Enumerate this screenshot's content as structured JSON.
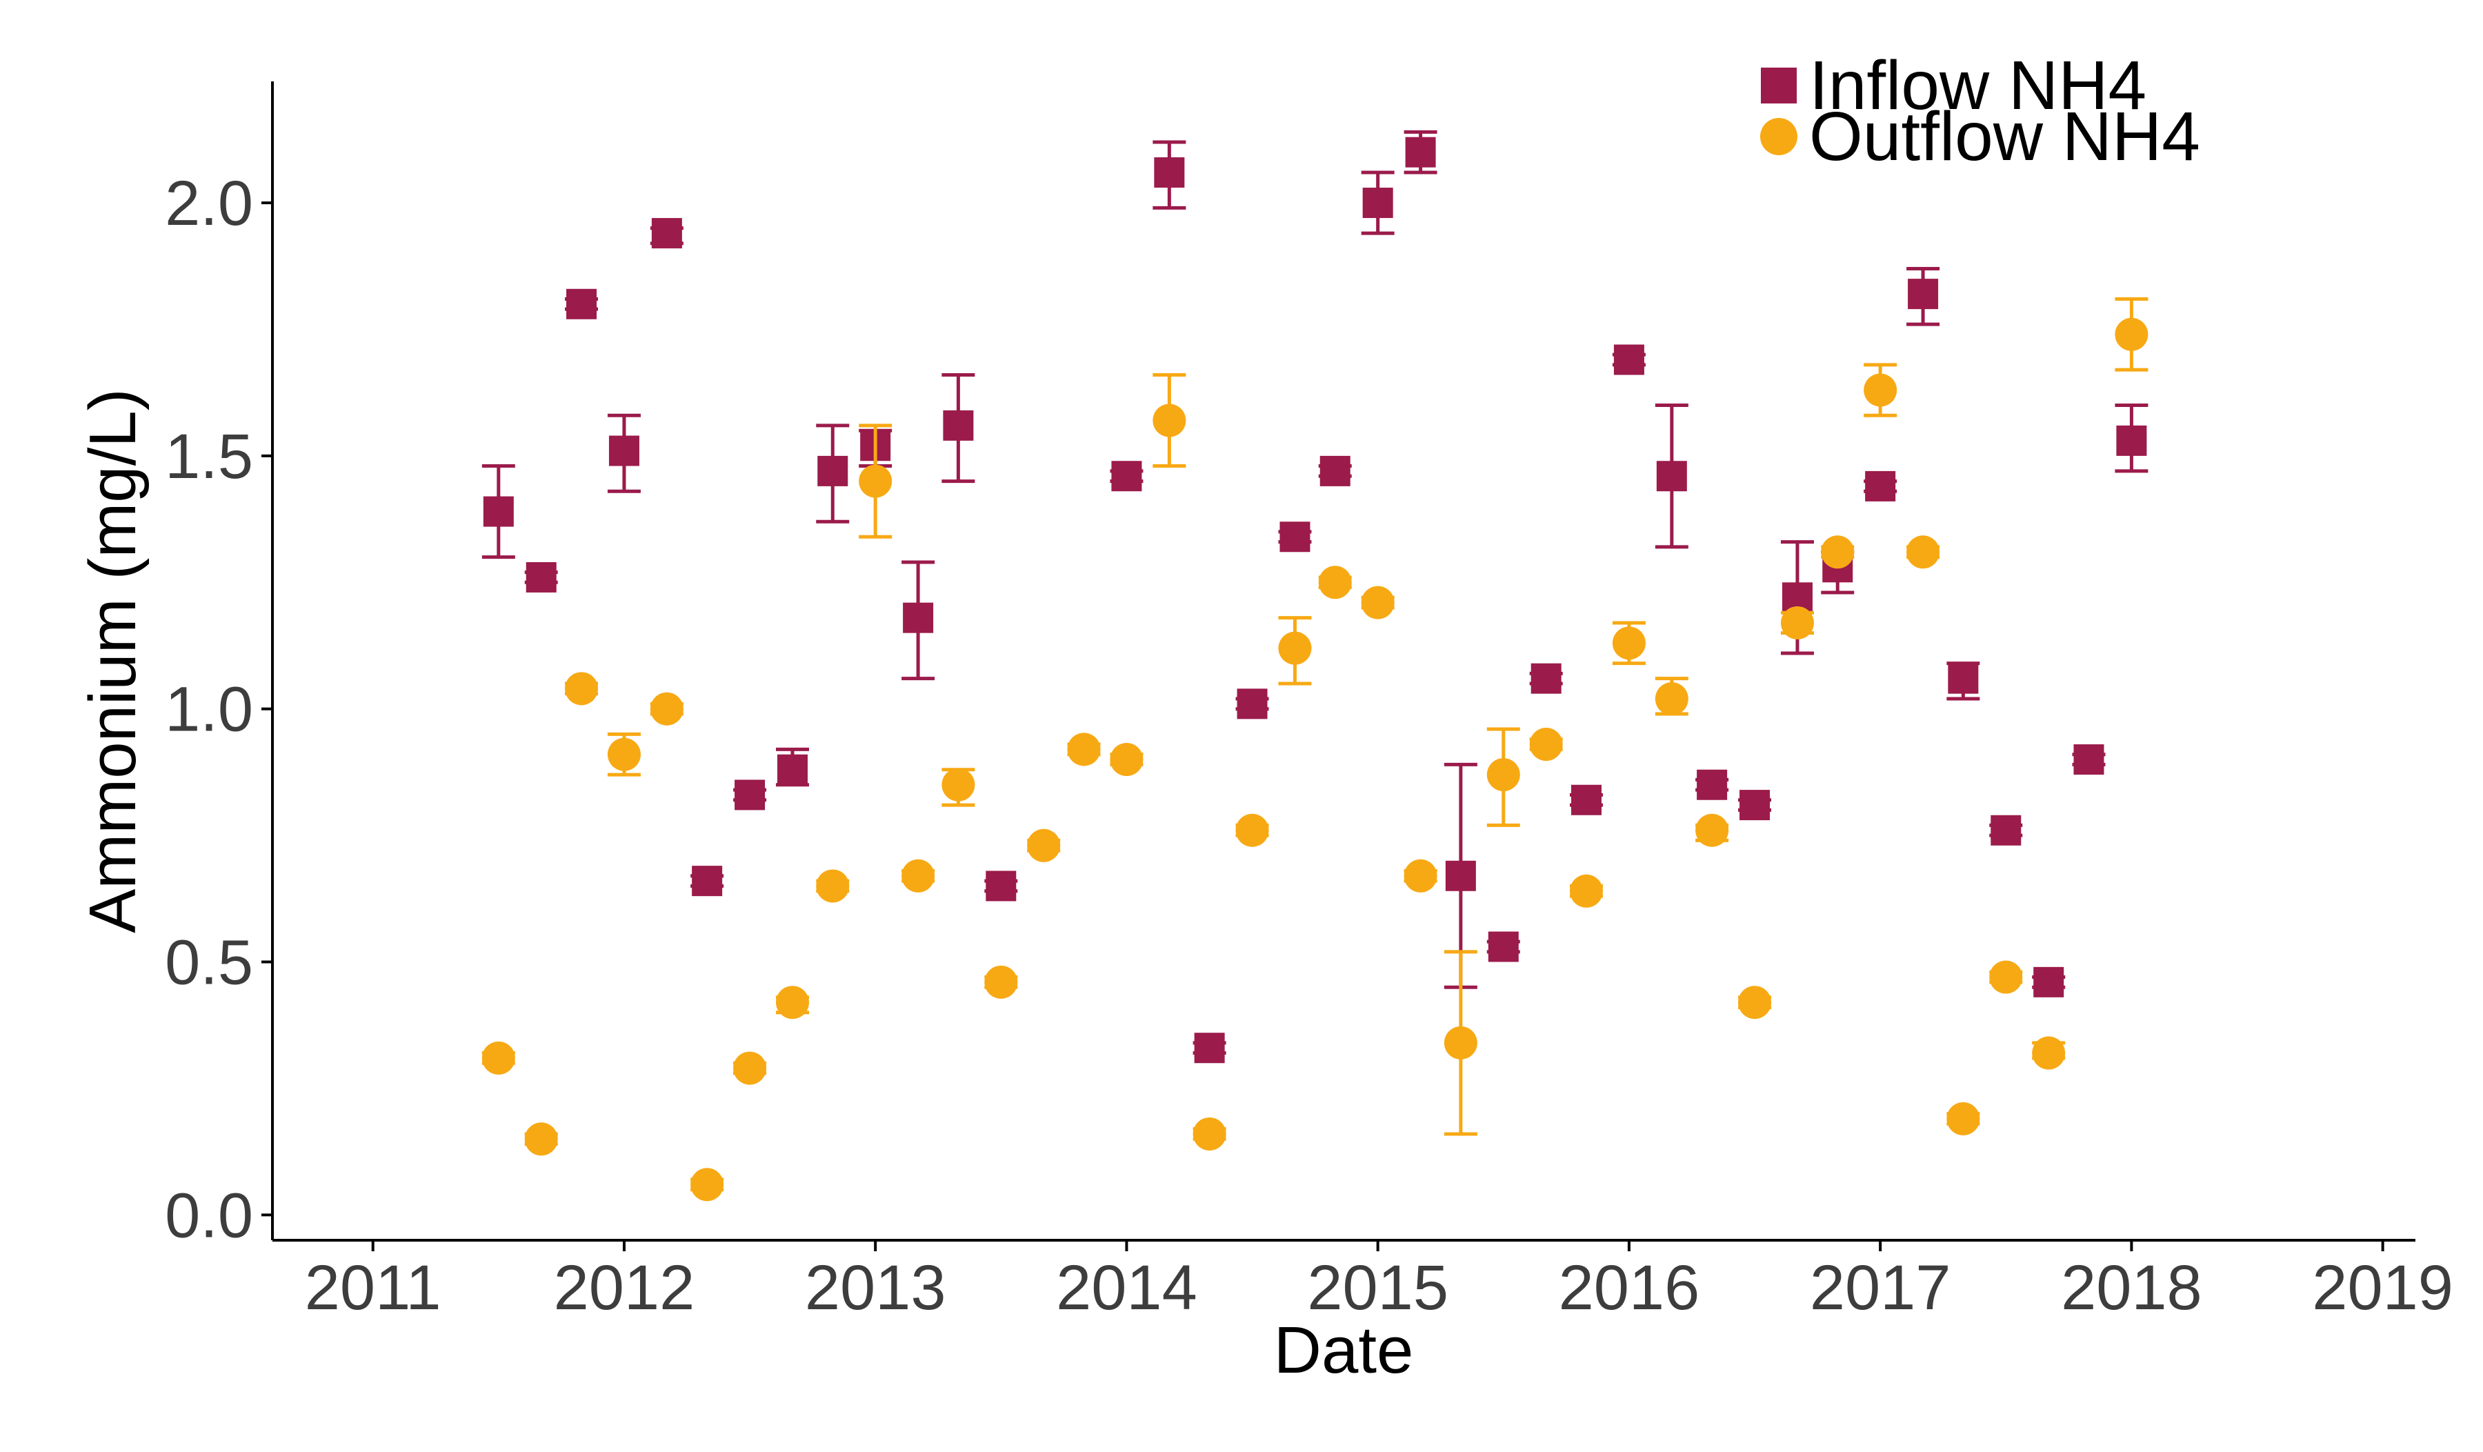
{
  "chart_data": {
    "type": "scatter",
    "xlabel": "Date",
    "ylabel": "Ammonium (mg/L)",
    "xlim": [
      2010.6,
      2019.13
    ],
    "ylim": [
      -0.05,
      2.24
    ],
    "x_ticks": [
      2011,
      2012,
      2013,
      2014,
      2015,
      2016,
      2017,
      2018,
      2019
    ],
    "y_ticks": [
      "0.0",
      "0.5",
      "1.0",
      "1.5",
      "2.0"
    ],
    "y_tick_values": [
      0.0,
      0.5,
      1.0,
      1.5,
      2.0
    ],
    "grid": false,
    "legend_position": "top-right",
    "series": [
      {
        "name": "Inflow NH4",
        "marker": "square",
        "color": "#9b1b4b",
        "points": [
          {
            "x": 2011.5,
            "y": 1.39,
            "lo": 1.3,
            "hi": 1.48
          },
          {
            "x": 2011.67,
            "y": 1.26,
            "lo": 1.25,
            "hi": 1.27
          },
          {
            "x": 2011.83,
            "y": 1.8,
            "lo": 1.79,
            "hi": 1.81
          },
          {
            "x": 2012.0,
            "y": 1.51,
            "lo": 1.43,
            "hi": 1.58
          },
          {
            "x": 2012.17,
            "y": 1.94,
            "lo": 1.92,
            "hi": 1.95
          },
          {
            "x": 2012.33,
            "y": 0.66,
            "lo": 0.65,
            "hi": 0.67
          },
          {
            "x": 2012.5,
            "y": 0.83,
            "lo": 0.82,
            "hi": 0.84
          },
          {
            "x": 2012.67,
            "y": 0.88,
            "lo": 0.85,
            "hi": 0.92
          },
          {
            "x": 2012.83,
            "y": 1.47,
            "lo": 1.37,
            "hi": 1.56
          },
          {
            "x": 2013.0,
            "y": 1.52,
            "lo": 1.48,
            "hi": 1.55
          },
          {
            "x": 2013.17,
            "y": 1.18,
            "lo": 1.06,
            "hi": 1.29
          },
          {
            "x": 2013.33,
            "y": 1.56,
            "lo": 1.45,
            "hi": 1.66
          },
          {
            "x": 2013.5,
            "y": 0.65,
            "lo": 0.64,
            "hi": 0.66
          },
          {
            "x": 2014.0,
            "y": 1.46,
            "lo": 1.45,
            "hi": 1.47
          },
          {
            "x": 2014.17,
            "y": 2.06,
            "lo": 1.99,
            "hi": 2.12
          },
          {
            "x": 2014.33,
            "y": 0.33,
            "lo": 0.32,
            "hi": 0.34
          },
          {
            "x": 2014.5,
            "y": 1.01,
            "lo": 1.0,
            "hi": 1.02
          },
          {
            "x": 2014.67,
            "y": 1.34,
            "lo": 1.33,
            "hi": 1.35
          },
          {
            "x": 2014.83,
            "y": 1.47,
            "lo": 1.46,
            "hi": 1.48
          },
          {
            "x": 2015.0,
            "y": 2.0,
            "lo": 1.94,
            "hi": 2.06
          },
          {
            "x": 2015.17,
            "y": 2.1,
            "lo": 2.06,
            "hi": 2.14
          },
          {
            "x": 2015.33,
            "y": 0.67,
            "lo": 0.45,
            "hi": 0.89
          },
          {
            "x": 2015.5,
            "y": 0.53,
            "lo": 0.52,
            "hi": 0.54
          },
          {
            "x": 2015.67,
            "y": 1.06,
            "lo": 1.05,
            "hi": 1.07
          },
          {
            "x": 2015.83,
            "y": 0.82,
            "lo": 0.81,
            "hi": 0.83
          },
          {
            "x": 2016.0,
            "y": 1.69,
            "lo": 1.68,
            "hi": 1.7
          },
          {
            "x": 2016.17,
            "y": 1.46,
            "lo": 1.32,
            "hi": 1.6
          },
          {
            "x": 2016.33,
            "y": 0.85,
            "lo": 0.84,
            "hi": 0.86
          },
          {
            "x": 2016.5,
            "y": 0.81,
            "lo": 0.8,
            "hi": 0.82
          },
          {
            "x": 2016.67,
            "y": 1.22,
            "lo": 1.11,
            "hi": 1.33
          },
          {
            "x": 2016.83,
            "y": 1.28,
            "lo": 1.23,
            "hi": 1.31
          },
          {
            "x": 2017.0,
            "y": 1.44,
            "lo": 1.43,
            "hi": 1.45
          },
          {
            "x": 2017.17,
            "y": 1.82,
            "lo": 1.76,
            "hi": 1.87
          },
          {
            "x": 2017.33,
            "y": 1.06,
            "lo": 1.02,
            "hi": 1.09
          },
          {
            "x": 2017.5,
            "y": 0.76,
            "lo": 0.75,
            "hi": 0.77
          },
          {
            "x": 2017.67,
            "y": 0.46,
            "lo": 0.45,
            "hi": 0.47
          },
          {
            "x": 2017.83,
            "y": 0.9,
            "lo": 0.89,
            "hi": 0.91
          },
          {
            "x": 2018.0,
            "y": 1.53,
            "lo": 1.47,
            "hi": 1.6
          }
        ]
      },
      {
        "name": "Outflow NH4",
        "marker": "circle",
        "color": "#f7a914",
        "points": [
          {
            "x": 2011.5,
            "y": 0.31,
            "lo": 0.3,
            "hi": 0.32
          },
          {
            "x": 2011.67,
            "y": 0.15,
            "lo": 0.14,
            "hi": 0.16
          },
          {
            "x": 2011.83,
            "y": 1.04,
            "lo": 1.03,
            "hi": 1.05
          },
          {
            "x": 2012.0,
            "y": 0.91,
            "lo": 0.87,
            "hi": 0.95
          },
          {
            "x": 2012.17,
            "y": 1.0,
            "lo": 0.99,
            "hi": 1.01
          },
          {
            "x": 2012.33,
            "y": 0.06,
            "lo": 0.05,
            "hi": 0.07
          },
          {
            "x": 2012.5,
            "y": 0.29,
            "lo": 0.28,
            "hi": 0.3
          },
          {
            "x": 2012.67,
            "y": 0.42,
            "lo": 0.4,
            "hi": 0.43
          },
          {
            "x": 2012.83,
            "y": 0.65,
            "lo": 0.64,
            "hi": 0.66
          },
          {
            "x": 2013.0,
            "y": 1.45,
            "lo": 1.34,
            "hi": 1.56
          },
          {
            "x": 2013.17,
            "y": 0.67,
            "lo": 0.66,
            "hi": 0.68
          },
          {
            "x": 2013.33,
            "y": 0.85,
            "lo": 0.81,
            "hi": 0.88
          },
          {
            "x": 2013.5,
            "y": 0.46,
            "lo": 0.45,
            "hi": 0.47
          },
          {
            "x": 2013.67,
            "y": 0.73,
            "lo": 0.72,
            "hi": 0.74
          },
          {
            "x": 2013.83,
            "y": 0.92,
            "lo": 0.91,
            "hi": 0.93
          },
          {
            "x": 2014.0,
            "y": 0.9,
            "lo": 0.89,
            "hi": 0.91
          },
          {
            "x": 2014.17,
            "y": 1.57,
            "lo": 1.48,
            "hi": 1.66
          },
          {
            "x": 2014.33,
            "y": 0.16,
            "lo": 0.15,
            "hi": 0.17
          },
          {
            "x": 2014.5,
            "y": 0.76,
            "lo": 0.75,
            "hi": 0.77
          },
          {
            "x": 2014.67,
            "y": 1.12,
            "lo": 1.05,
            "hi": 1.18
          },
          {
            "x": 2014.83,
            "y": 1.25,
            "lo": 1.24,
            "hi": 1.26
          },
          {
            "x": 2015.0,
            "y": 1.21,
            "lo": 1.2,
            "hi": 1.22
          },
          {
            "x": 2015.17,
            "y": 0.67,
            "lo": 0.66,
            "hi": 0.68
          },
          {
            "x": 2015.33,
            "y": 0.34,
            "lo": 0.16,
            "hi": 0.52
          },
          {
            "x": 2015.5,
            "y": 0.87,
            "lo": 0.77,
            "hi": 0.96
          },
          {
            "x": 2015.67,
            "y": 0.93,
            "lo": 0.92,
            "hi": 0.94
          },
          {
            "x": 2015.83,
            "y": 0.64,
            "lo": 0.63,
            "hi": 0.65
          },
          {
            "x": 2016.0,
            "y": 1.13,
            "lo": 1.09,
            "hi": 1.17
          },
          {
            "x": 2016.17,
            "y": 1.02,
            "lo": 0.99,
            "hi": 1.06
          },
          {
            "x": 2016.33,
            "y": 0.76,
            "lo": 0.74,
            "hi": 0.77
          },
          {
            "x": 2016.5,
            "y": 0.42,
            "lo": 0.41,
            "hi": 0.43
          },
          {
            "x": 2016.67,
            "y": 1.17,
            "lo": 1.15,
            "hi": 1.19
          },
          {
            "x": 2016.83,
            "y": 1.31,
            "lo": 1.3,
            "hi": 1.32
          },
          {
            "x": 2017.0,
            "y": 1.63,
            "lo": 1.58,
            "hi": 1.68
          },
          {
            "x": 2017.17,
            "y": 1.31,
            "lo": 1.3,
            "hi": 1.32
          },
          {
            "x": 2017.33,
            "y": 0.19,
            "lo": 0.18,
            "hi": 0.2
          },
          {
            "x": 2017.5,
            "y": 0.47,
            "lo": 0.46,
            "hi": 0.48
          },
          {
            "x": 2017.67,
            "y": 0.32,
            "lo": 0.31,
            "hi": 0.34
          },
          {
            "x": 2018.0,
            "y": 1.74,
            "lo": 1.67,
            "hi": 1.81
          }
        ]
      }
    ]
  }
}
